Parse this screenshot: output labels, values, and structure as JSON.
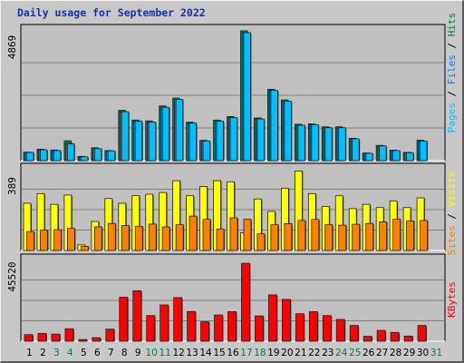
{
  "chart_data": [
    {
      "type": "bar",
      "title": "Daily usage for September 2022",
      "panel": "pages-files-hits",
      "ymax_label": "4869",
      "ylim": [
        0,
        4869
      ],
      "categories": [
        "1",
        "2",
        "3",
        "4",
        "5",
        "6",
        "7",
        "8",
        "9",
        "10",
        "11",
        "12",
        "13",
        "14",
        "15",
        "16",
        "17",
        "18",
        "19",
        "20",
        "21",
        "22",
        "23",
        "24",
        "25",
        "26",
        "27",
        "28",
        "29",
        "30",
        "31"
      ],
      "weekend_days": [
        "3",
        "4",
        "10",
        "11",
        "17",
        "18",
        "24",
        "25",
        "31"
      ],
      "legend": [
        "Pages",
        "Files",
        "Hits"
      ],
      "series": [
        {
          "name": "Hits",
          "color": "#008040",
          "values": [
            312,
            419,
            390,
            731,
            155,
            473,
            371,
            1848,
            1492,
            1460,
            2010,
            2299,
            1414,
            745,
            1490,
            1620,
            4770,
            1569,
            2622,
            2233,
            1336,
            1354,
            1243,
            1244,
            822,
            282,
            560,
            385,
            305,
            752,
            0
          ]
        },
        {
          "name": "Files",
          "color": "#0080ff",
          "values": [
            300,
            400,
            370,
            620,
            140,
            440,
            360,
            1800,
            1450,
            1420,
            1960,
            2250,
            1380,
            720,
            1450,
            1580,
            4700,
            1530,
            2580,
            2180,
            1300,
            1320,
            1210,
            1210,
            800,
            270,
            540,
            370,
            290,
            720,
            0
          ]
        },
        {
          "name": "Pages",
          "color": "#00c0ff",
          "values": [
            300,
            400,
            370,
            620,
            140,
            440,
            360,
            1800,
            1450,
            1420,
            1960,
            2250,
            1380,
            720,
            1450,
            1580,
            4700,
            1530,
            2580,
            2180,
            1300,
            1320,
            1210,
            1210,
            800,
            270,
            540,
            370,
            290,
            720,
            0
          ]
        }
      ]
    },
    {
      "type": "bar",
      "panel": "visits-sites",
      "ymax_label": "389",
      "ylim": [
        0,
        389
      ],
      "categories": [
        "1",
        "2",
        "3",
        "4",
        "5",
        "6",
        "7",
        "8",
        "9",
        "10",
        "11",
        "12",
        "13",
        "14",
        "15",
        "16",
        "17",
        "18",
        "19",
        "20",
        "21",
        "22",
        "23",
        "24",
        "25",
        "26",
        "27",
        "28",
        "29",
        "30",
        "31"
      ],
      "legend": [
        "Sites",
        "Visits"
      ],
      "series": [
        {
          "name": "Visits",
          "color": "#ffff00",
          "values": [
            220,
            265,
            215,
            258,
            26,
            135,
            242,
            220,
            255,
            262,
            270,
            325,
            255,
            298,
            325,
            320,
            82,
            240,
            182,
            290,
            370,
            265,
            205,
            255,
            195,
            215,
            200,
            230,
            200,
            245,
            0
          ]
        },
        {
          "name": "Sites",
          "color": "#ff8000",
          "values": [
            88,
            95,
            97,
            103,
            19,
            110,
            126,
            116,
            113,
            123,
            110,
            120,
            160,
            145,
            100,
            152,
            145,
            78,
            120,
            125,
            140,
            145,
            120,
            118,
            122,
            126,
            133,
            146,
            138,
            140,
            0
          ]
        }
      ]
    },
    {
      "type": "bar",
      "panel": "kbytes",
      "ymax_label": "45520",
      "ylim": [
        0,
        45520
      ],
      "categories": [
        "1",
        "2",
        "3",
        "4",
        "5",
        "6",
        "7",
        "8",
        "9",
        "10",
        "11",
        "12",
        "13",
        "14",
        "15",
        "16",
        "17",
        "18",
        "19",
        "20",
        "21",
        "22",
        "23",
        "24",
        "25",
        "26",
        "27",
        "28",
        "29",
        "30",
        "31"
      ],
      "legend": [
        "KBytes"
      ],
      "series": [
        {
          "name": "KBytes",
          "color": "#ff0000",
          "values": [
            3600,
            4300,
            3900,
            6800,
            900,
            1900,
            6600,
            24000,
            27500,
            14000,
            19800,
            23800,
            16200,
            10600,
            14300,
            16100,
            42500,
            13800,
            25300,
            22800,
            15000,
            16100,
            14000,
            11900,
            8600,
            2700,
            5900,
            4800,
            2800,
            8600,
            0
          ]
        }
      ]
    }
  ],
  "colors": {
    "panel_bg": "#c0c0c0",
    "frame_bg": "#c8c8c8",
    "title": "#1432a4",
    "weekday_label": "#000000",
    "weekend_label": "#008040"
  }
}
